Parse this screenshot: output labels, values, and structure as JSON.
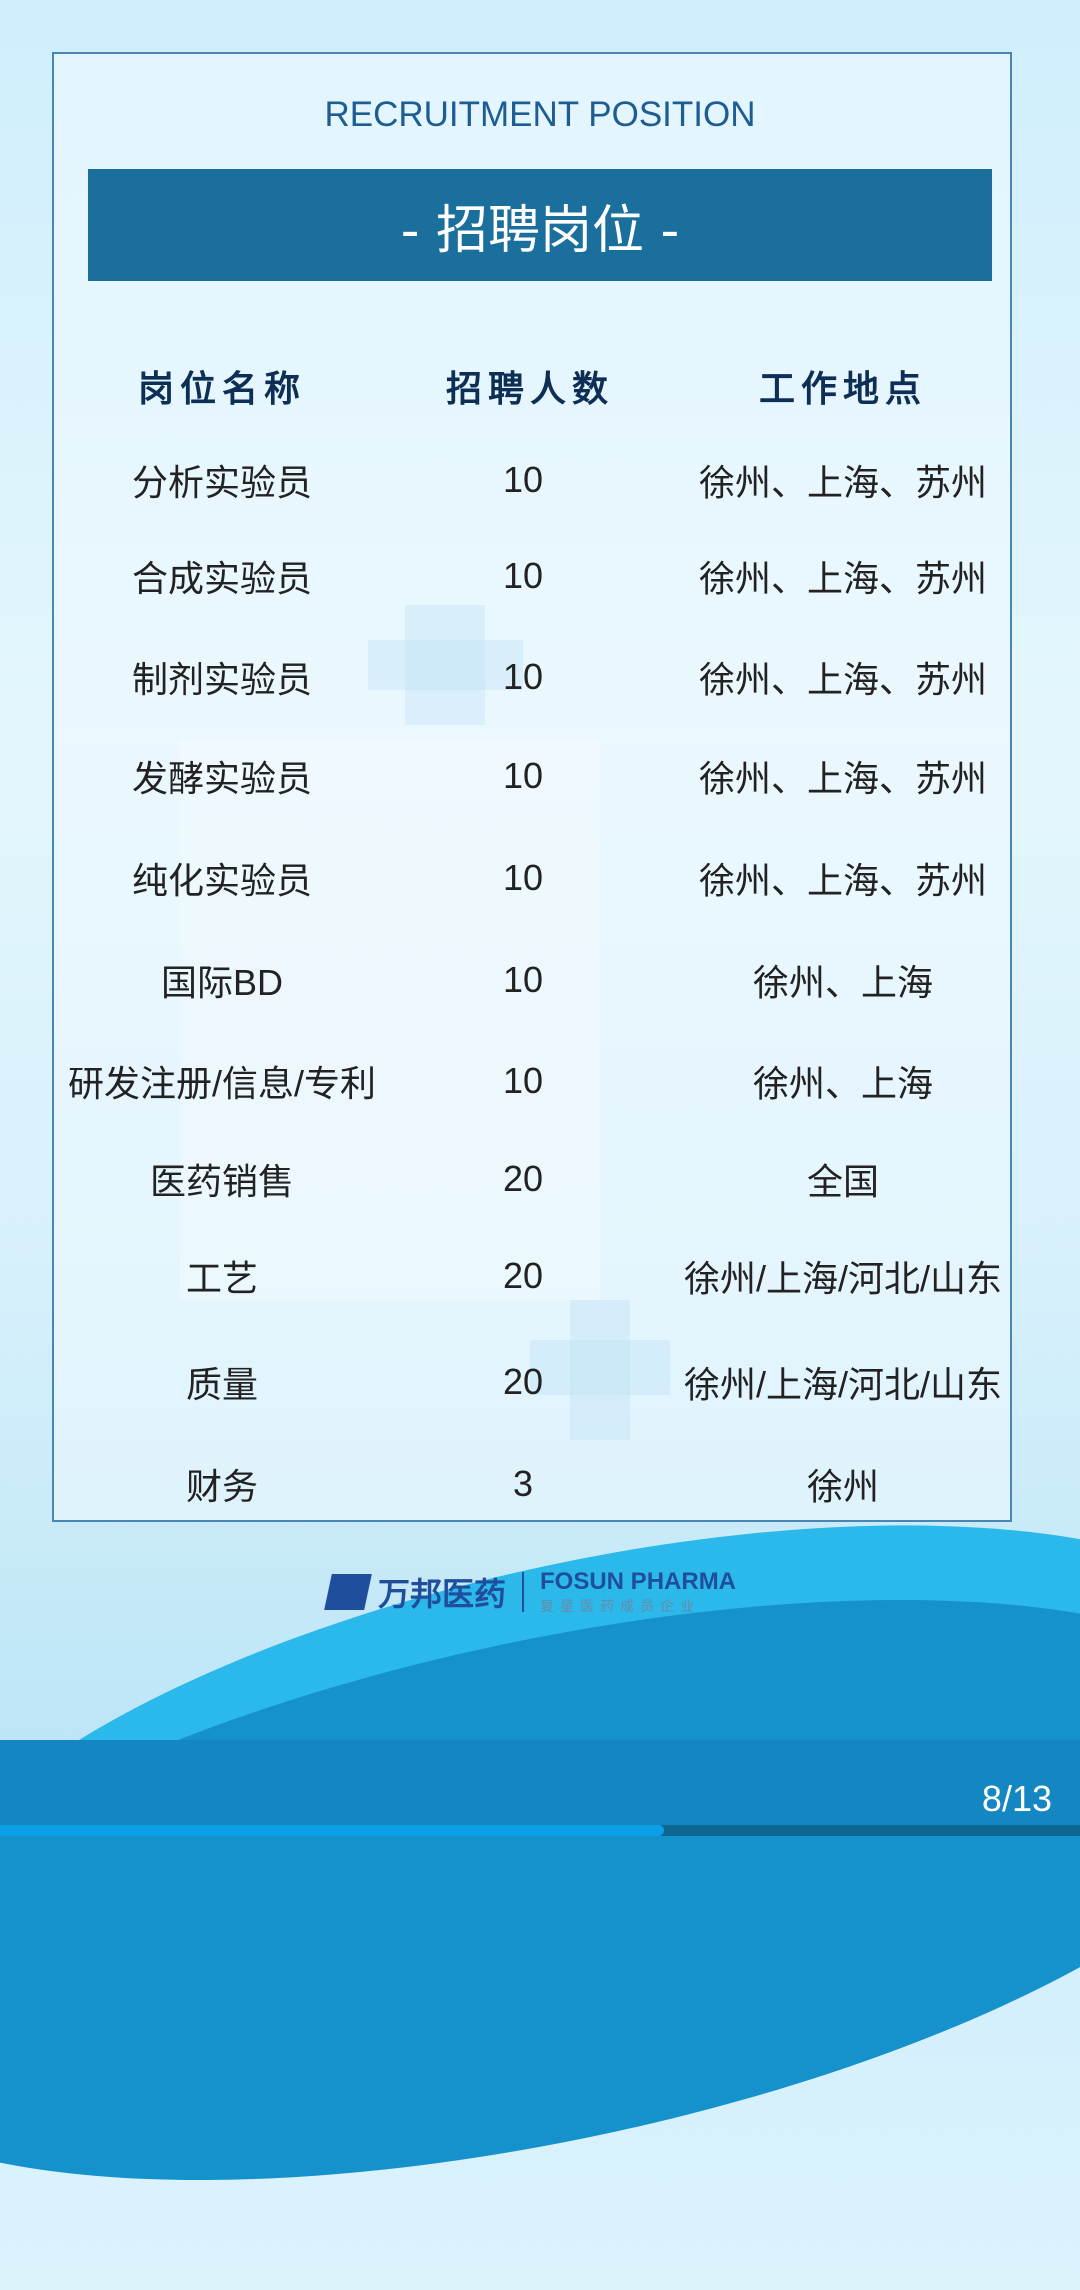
{
  "title_en": "RECRUITMENT POSITION",
  "title_cn": "- 招聘岗位 -",
  "headers": [
    "岗位名称",
    "招聘人数",
    "工作地点"
  ],
  "rows": [
    {
      "position": "分析实验员",
      "count": "10",
      "location": "徐州、上海、苏州"
    },
    {
      "position": "合成实验员",
      "count": "10",
      "location": "徐州、上海、苏州"
    },
    {
      "position": "制剂实验员",
      "count": "10",
      "location": "徐州、上海、苏州"
    },
    {
      "position": "发酵实验员",
      "count": "10",
      "location": "徐州、上海、苏州"
    },
    {
      "position": "纯化实验员",
      "count": "10",
      "location": "徐州、上海、苏州"
    },
    {
      "position": "国际BD",
      "count": "10",
      "location": "徐州、上海"
    },
    {
      "position": "研发注册/信息/专利",
      "count": "10",
      "location": "徐州、上海"
    },
    {
      "position": "医药销售",
      "count": "20",
      "location": "全国"
    },
    {
      "position": "工艺",
      "count": "20",
      "location": "徐州/上海/河北/山东"
    },
    {
      "position": "质量",
      "count": "20",
      "location": "徐州/上海/河北/山东"
    },
    {
      "position": "财务",
      "count": "3",
      "location": "徐州"
    }
  ],
  "logo": {
    "cn": "万邦医药",
    "en": "FOSUN PHARMA",
    "sub": "复星医药成员企业"
  },
  "page_indicator": "8/13",
  "progress_percent": 61.5,
  "colors": {
    "banner": "#1a6f9c",
    "title": "#1e5d91",
    "progress": "#0aa0e8"
  }
}
